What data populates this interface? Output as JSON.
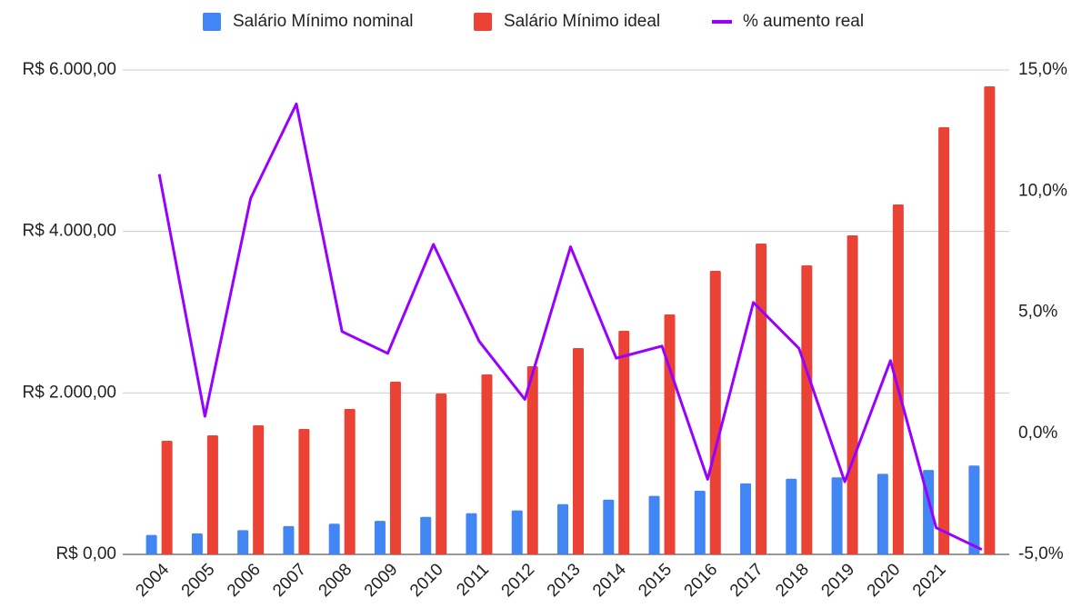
{
  "chart_data": {
    "type": "bar_line",
    "categories": [
      "2004",
      "2005",
      "2006",
      "2007",
      "2008",
      "2009",
      "2010",
      "2011",
      "2012",
      "2013",
      "2014",
      "2015",
      "2016",
      "2017",
      "2018",
      "2019",
      "2020",
      "2021",
      null
    ],
    "series": [
      {
        "name": "Salário Mínimo nominal",
        "color": "#4285f4",
        "type": "bar",
        "values": [
          240,
          260,
          300,
          350,
          380,
          415,
          465,
          510,
          545,
          622,
          678,
          724,
          788,
          880,
          937,
          954,
          998,
          1045,
          1100
        ]
      },
      {
        "name": "Salário Mínimo ideal",
        "color": "#ea4335",
        "type": "bar",
        "values": [
          1407,
          1475,
          1598,
          1553,
          1801,
          2139,
          1992,
          2229,
          2330,
          2555,
          2769,
          2972,
          3512,
          3850,
          3580,
          3951,
          4334,
          5291,
          5797
        ]
      },
      {
        "name": "% aumento real",
        "color": "#9900ff",
        "type": "line",
        "axis": "y2",
        "values": [
          10.7,
          0.7,
          9.7,
          13.6,
          4.2,
          3.3,
          7.8,
          3.8,
          1.4,
          7.7,
          3.1,
          3.6,
          -1.9,
          5.4,
          3.5,
          -2.0,
          3.0,
          -3.9,
          -4.8
        ]
      }
    ],
    "ylim": [
      0,
      6000
    ],
    "yticks": [
      {
        "value": 0,
        "label": "R$ 0,00"
      },
      {
        "value": 2000,
        "label": "R$ 2.000,00"
      },
      {
        "value": 4000,
        "label": "R$ 4.000,00"
      },
      {
        "value": 6000,
        "label": "R$ 6.000,00"
      }
    ],
    "y2lim": [
      -5,
      15
    ],
    "y2ticks": [
      {
        "value": -5,
        "label": "-5,0%"
      },
      {
        "value": 0,
        "label": "0,0%"
      },
      {
        "value": 5,
        "label": "5,0%"
      },
      {
        "value": 10,
        "label": "10,0%"
      },
      {
        "value": 15,
        "label": "15,0%"
      }
    ],
    "grid": true,
    "legend": "top"
  }
}
